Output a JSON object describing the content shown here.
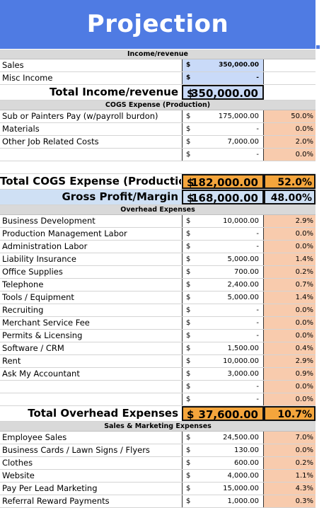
{
  "title": "Projection",
  "income": {
    "section_label": "Income/revenue",
    "rows": [
      {
        "label": "Sales",
        "sym": "$",
        "amount": "350,000.00"
      },
      {
        "label": "Misc Income",
        "sym": "$",
        "amount": "-"
      }
    ],
    "total_label": "Total Income/revenue",
    "total_sym": "$",
    "total_amount": "350,000.00"
  },
  "cogs": {
    "section_label": "COGS Expense (Production)",
    "rows": [
      {
        "label": "Sub or Painters Pay (w/payroll burdon)",
        "sym": "$",
        "amount": "175,000.00",
        "pct": "50.0%"
      },
      {
        "label": "Materials",
        "sym": "$",
        "amount": "-",
        "pct": "0.0%"
      },
      {
        "label": "Other Job Related Costs",
        "sym": "$",
        "amount": "7,000.00",
        "pct": "2.0%"
      },
      {
        "label": "",
        "sym": "$",
        "amount": "-",
        "pct": "0.0%"
      }
    ],
    "total_label": "Total COGS Expense (Production)",
    "total_sym": "$",
    "total_amount": "182,000.00",
    "total_pct": "52.0%",
    "gross_label": "Gross Profit/Margin",
    "gross_sym": "$",
    "gross_amount": "168,000.00",
    "gross_pct": "48.00%"
  },
  "overhead": {
    "section_label": "Overhead Expenses",
    "rows": [
      {
        "label": "Business Development",
        "sym": "$",
        "amount": "10,000.00",
        "pct": "2.9%"
      },
      {
        "label": "Production Management Labor",
        "sym": "$",
        "amount": "-",
        "pct": "0.0%"
      },
      {
        "label": "Administration Labor",
        "sym": "$",
        "amount": "-",
        "pct": "0.0%"
      },
      {
        "label": "Liability Insurance",
        "sym": "$",
        "amount": "5,000.00",
        "pct": "1.4%"
      },
      {
        "label": "Office Supplies",
        "sym": "$",
        "amount": "700.00",
        "pct": "0.2%"
      },
      {
        "label": "Telephone",
        "sym": "$",
        "amount": "2,400.00",
        "pct": "0.7%"
      },
      {
        "label": "Tools / Equipment",
        "sym": "$",
        "amount": "5,000.00",
        "pct": "1.4%"
      },
      {
        "label": "Recruiting",
        "sym": "$",
        "amount": "-",
        "pct": "0.0%"
      },
      {
        "label": "Merchant Service Fee",
        "sym": "$",
        "amount": "-",
        "pct": "0.0%"
      },
      {
        "label": "Permits & Licensing",
        "sym": "$",
        "amount": "-",
        "pct": "0.0%"
      },
      {
        "label": "Software / CRM",
        "sym": "$",
        "amount": "1,500.00",
        "pct": "0.4%"
      },
      {
        "label": "Rent",
        "sym": "$",
        "amount": "10,000.00",
        "pct": "2.9%"
      },
      {
        "label": "Ask My Accountant",
        "sym": "$",
        "amount": "3,000.00",
        "pct": "0.9%"
      },
      {
        "label": "",
        "sym": "$",
        "amount": "-",
        "pct": "0.0%"
      },
      {
        "label": "",
        "sym": "$",
        "amount": "-",
        "pct": "0.0%"
      }
    ],
    "total_label": "Total Overhead Expenses",
    "total_sym": "$",
    "total_amount": "37,600.00",
    "total_pct": "10.7%"
  },
  "marketing": {
    "section_label": "Sales & Marketing Expenses",
    "rows": [
      {
        "label": "Employee Sales",
        "sym": "$",
        "amount": "24,500.00",
        "pct": "7.0%"
      },
      {
        "label": "Business Cards / Lawn Signs / Flyers",
        "sym": "$",
        "amount": "130.00",
        "pct": "0.0%"
      },
      {
        "label": "Clothes",
        "sym": "$",
        "amount": "600.00",
        "pct": "0.2%"
      },
      {
        "label": "Website",
        "sym": "$",
        "amount": "4,000.00",
        "pct": "1.1%"
      },
      {
        "label": "Pay Per Lead Marketing",
        "sym": "$",
        "amount": "15,000.00",
        "pct": "4.3%"
      },
      {
        "label": "Referral Reward Payments",
        "sym": "$",
        "amount": "1,000.00",
        "pct": "0.3%"
      }
    ]
  },
  "colors": {
    "banner": "#4f7be3",
    "percent_fill": "#f8cbad",
    "total_fill": "#f4a53c",
    "income_fill": "#c9daf8"
  }
}
